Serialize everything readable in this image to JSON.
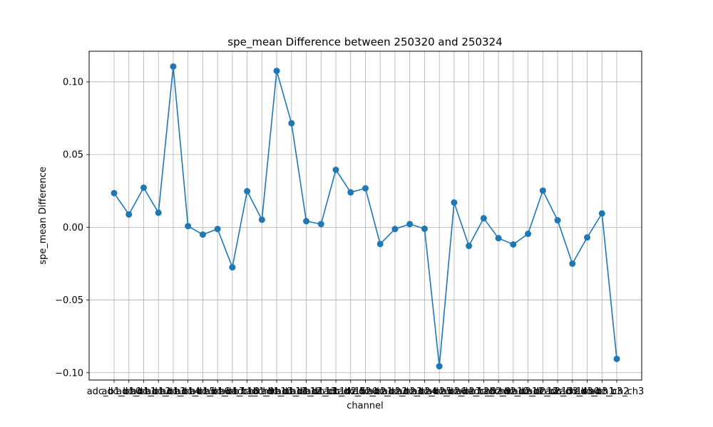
{
  "chart_data": {
    "type": "line",
    "title": "spe_mean Difference between 250320 and 250324",
    "xlabel": "channel",
    "ylabel": "spe_mean Difference",
    "ylim": [
      -0.105,
      0.121
    ],
    "yticks": [
      -0.1,
      -0.05,
      0.0,
      0.05,
      0.1
    ],
    "ytick_labels": [
      "−0.10",
      "−0.05",
      "0.00",
      "0.05",
      "0.10"
    ],
    "grid": true,
    "categories": [
      "adc_b1_ch0",
      "adc_b1_ch1",
      "adc_b1_ch2",
      "adc_b1_ch3",
      "adc_b1_ch4",
      "adc_b1_ch5",
      "adc_b1_ch6",
      "adc_b1_ch7",
      "adc_b1_ch8",
      "adc_b1_ch9",
      "adc_b1_ch10",
      "adc_b1_ch11",
      "adc_b1_ch12",
      "adc_b1_ch13",
      "adc_b1_ch14",
      "adc_b1_ch15",
      "adc_b2_ch0",
      "adc_b2_ch1",
      "adc_b2_ch2",
      "adc_b2_ch3",
      "adc_b2_ch4",
      "adc_b2_ch5",
      "adc_b2_ch6",
      "adc_b2_ch7",
      "adc_b2_ch8",
      "adc_b2_ch9",
      "adc_b2_ch10",
      "adc_b2_ch11",
      "adc_b2_ch12",
      "adc_b2_ch13",
      "adc_b2_ch14",
      "adc_b3_ch0",
      "adc_b3_ch1",
      "adc_b3_ch2",
      "adc_b3_ch3"
    ],
    "series": [
      {
        "color": "#1f77b4",
        "values": [
          0.0235,
          0.0088,
          0.0272,
          0.01,
          0.1105,
          0.0008,
          -0.005,
          -0.0012,
          -0.0275,
          0.0248,
          0.0052,
          0.1075,
          0.0715,
          0.0042,
          0.0022,
          0.0395,
          0.024,
          0.0268,
          -0.0115,
          -0.0012,
          0.0022,
          -0.001,
          -0.0955,
          0.017,
          -0.0128,
          0.0062,
          -0.0075,
          -0.0118,
          -0.0045,
          0.0252,
          0.0048,
          -0.025,
          -0.007,
          0.0095,
          -0.0905
        ]
      }
    ]
  }
}
